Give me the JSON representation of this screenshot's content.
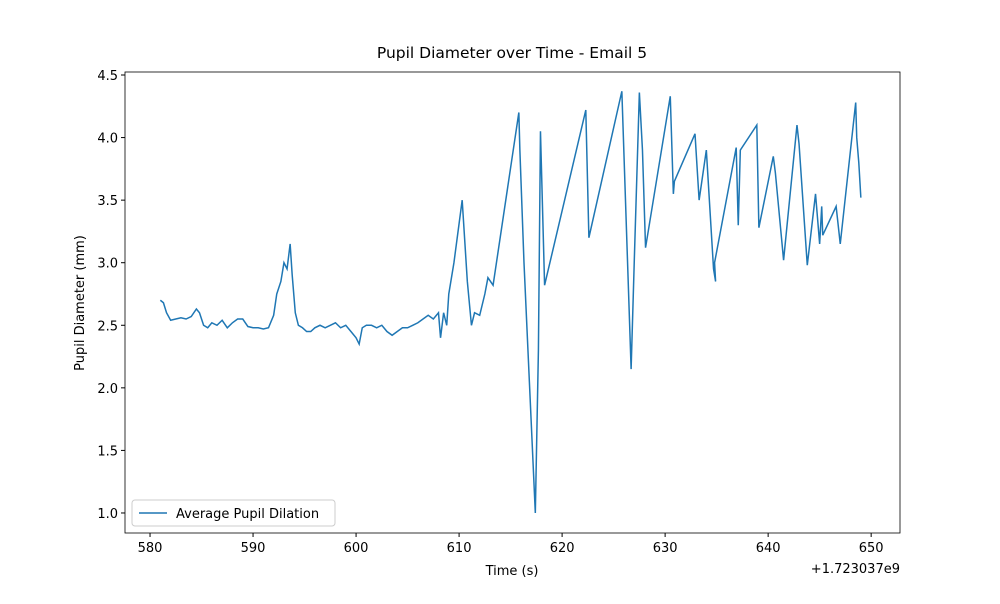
{
  "chart_data": {
    "type": "line",
    "title": "Pupil Diameter over Time - Email 5",
    "x_label": "Time (s)",
    "y_label": "Pupil Diameter (mm)",
    "x_offset_label": "+1.723037e9",
    "xlim": [
      577.57,
      652.8
    ],
    "ylim": [
      0.84,
      4.524
    ],
    "xticks": [
      580,
      590,
      600,
      610,
      620,
      630,
      640,
      650
    ],
    "yticks": [
      {
        "value": 1.0,
        "label": "1.0"
      },
      1.5,
      {
        "value": 2.0,
        "label": "2.0"
      },
      2.5,
      {
        "value": 3.0,
        "label": "3.0"
      },
      3.5,
      {
        "value": 4.0,
        "label": "4.0"
      },
      4.5
    ],
    "legend": "lower left",
    "x": [
      581.0,
      581.3,
      581.6,
      582.0,
      582.5,
      583,
      583.5,
      584,
      584.5,
      584.8,
      585.2,
      585.6,
      586,
      586.5,
      587,
      587.5,
      588,
      588.5,
      589,
      589.5,
      590,
      590.5,
      591,
      591.5,
      592,
      592.3,
      592.7,
      593,
      593.3,
      593.6,
      593.8,
      594.1,
      594.4,
      594.8,
      595.2,
      595.6,
      596,
      596.5,
      597,
      597.5,
      598,
      598.5,
      599,
      599.5,
      600,
      600.3,
      600.6,
      601,
      601.5,
      602,
      602.5,
      603,
      603.5,
      604,
      604.5,
      605,
      605.5,
      606,
      606.5,
      607,
      607.5,
      608,
      608.2,
      608.5,
      608.8,
      609,
      609.5,
      610.3,
      610.8,
      611.2,
      611.5,
      612,
      612.5,
      612.8,
      613.3,
      615.8,
      615.9,
      616.3,
      617.4,
      617.7,
      617.9,
      618.3,
      622.3,
      622.6,
      625.8,
      626.7,
      627.0,
      627.5,
      627.8,
      628.1,
      630.5,
      630.8,
      630.9,
      632.9,
      633.3,
      634.0,
      634.7,
      634.9,
      634.8,
      636.9,
      637.1,
      637.3,
      638.9,
      639.1,
      640.5,
      640.7,
      641.5,
      642.8,
      643.0,
      643.8,
      644.6,
      645.0,
      645.2,
      645.3,
      646.6,
      647.0,
      648.5,
      648.6,
      648.8,
      649.0
    ],
    "series": [
      {
        "name": "Average Pupil Dilation",
        "color": "#1f77b4",
        "values": [
          2.7,
          2.68,
          2.6,
          2.54,
          2.55,
          2.56,
          2.55,
          2.57,
          2.63,
          2.6,
          2.5,
          2.48,
          2.52,
          2.5,
          2.54,
          2.48,
          2.52,
          2.55,
          2.55,
          2.49,
          2.48,
          2.48,
          2.47,
          2.48,
          2.58,
          2.75,
          2.85,
          3.0,
          2.95,
          3.15,
          2.9,
          2.6,
          2.5,
          2.48,
          2.45,
          2.45,
          2.48,
          2.5,
          2.48,
          2.5,
          2.52,
          2.48,
          2.5,
          2.45,
          2.4,
          2.35,
          2.48,
          2.5,
          2.5,
          2.48,
          2.5,
          2.45,
          2.42,
          2.45,
          2.48,
          2.48,
          2.5,
          2.52,
          2.55,
          2.58,
          2.55,
          2.6,
          2.4,
          2.6,
          2.5,
          2.75,
          3.0,
          3.5,
          2.85,
          2.5,
          2.6,
          2.58,
          2.75,
          2.88,
          2.82,
          4.2,
          3.9,
          3.0,
          1.0,
          2.3,
          4.05,
          2.82,
          4.22,
          3.2,
          4.37,
          2.15,
          3.0,
          4.36,
          3.9,
          3.12,
          4.33,
          3.55,
          3.65,
          4.03,
          3.5,
          3.9,
          2.95,
          2.85,
          3.0,
          3.92,
          3.3,
          3.9,
          4.1,
          3.28,
          3.85,
          3.72,
          3.02,
          4.1,
          3.95,
          2.98,
          3.55,
          3.15,
          3.45,
          3.22,
          3.45,
          3.15,
          4.28,
          4.0,
          3.8,
          3.52
        ]
      }
    ]
  }
}
